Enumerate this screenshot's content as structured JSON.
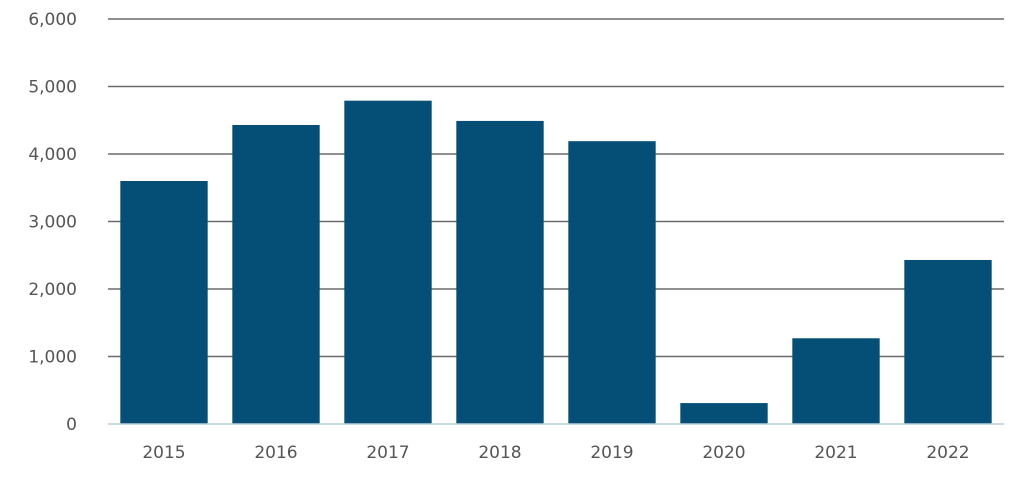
{
  "chart_data": {
    "type": "bar",
    "title": "",
    "xlabel": "",
    "ylabel": "",
    "categories": [
      "2015",
      "2016",
      "2017",
      "2018",
      "2019",
      "2020",
      "2021",
      "2022"
    ],
    "values": [
      3600,
      4430,
      4790,
      4490,
      4190,
      310,
      1270,
      2430
    ],
    "ylim": [
      0,
      6000
    ],
    "yticks": [
      0,
      1000,
      2000,
      3000,
      4000,
      5000,
      6000
    ],
    "ytick_labels": [
      "0",
      "1,000",
      "2,000",
      "3,000",
      "4,000",
      "5,000",
      "6,000"
    ],
    "grid": true,
    "legend": "none",
    "bar_color": "#054f77",
    "grid_color": "#6b6b6b",
    "baseline_color": "#b9cfdc",
    "label_color": "#555555"
  }
}
